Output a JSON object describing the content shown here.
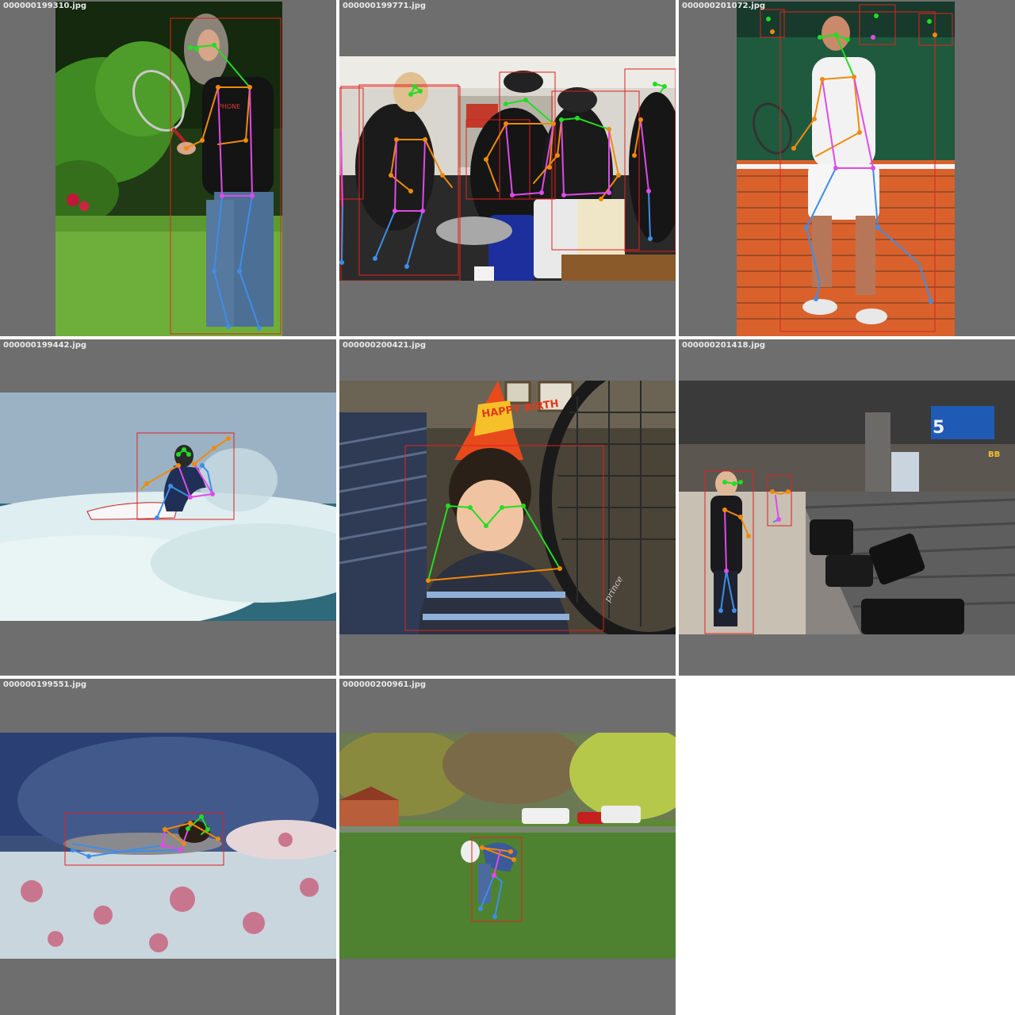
{
  "tiles": [
    {
      "filename": "000000199310.jpg"
    },
    {
      "filename": "000000199771.jpg"
    },
    {
      "filename": "000000201072.jpg"
    },
    {
      "filename": "000000199442.jpg"
    },
    {
      "filename": "000000200421.jpg"
    },
    {
      "filename": "000000201418.jpg"
    },
    {
      "filename": "000000199551.jpg"
    },
    {
      "filename": "000000200961.jpg"
    }
  ],
  "colors": {
    "tile_background": "#6e6e6e",
    "box": "#e0211f",
    "head_keypoints": "#22dd22",
    "arm_keypoints": "#f08a0c",
    "torso_keypoints": "#e04ae8",
    "leg_keypoints": "#3e8ee8"
  },
  "photo_printed_text": {
    "hat": "HAPPY BIRTH",
    "shirt": "PHONE",
    "racket_brand": "prince",
    "carousel_number": "5",
    "sign": "BB"
  }
}
